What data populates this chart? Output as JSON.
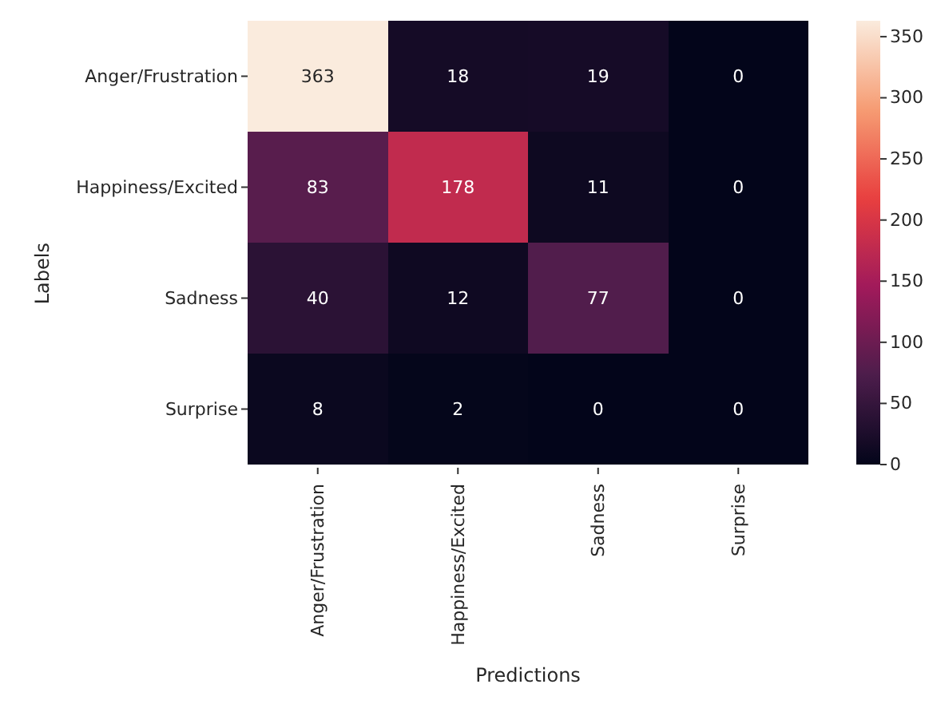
{
  "chart_data": {
    "type": "heatmap",
    "xlabel": "Predictions",
    "ylabel": "Labels",
    "categories": [
      "Anger/Frustration",
      "Happiness/Excited",
      "Sadness",
      "Surprise"
    ],
    "y_categories": [
      "Anger/Frustration",
      "Happiness/Excited",
      "Sadness",
      "Surprise"
    ],
    "cells": [
      [
        363,
        18,
        19,
        0
      ],
      [
        83,
        178,
        11,
        0
      ],
      [
        40,
        12,
        77,
        0
      ],
      [
        8,
        2,
        0,
        0
      ]
    ],
    "clim": [
      0,
      363
    ],
    "cticks": [
      0,
      50,
      100,
      150,
      200,
      250,
      300,
      350
    ],
    "data_labels": true
  }
}
